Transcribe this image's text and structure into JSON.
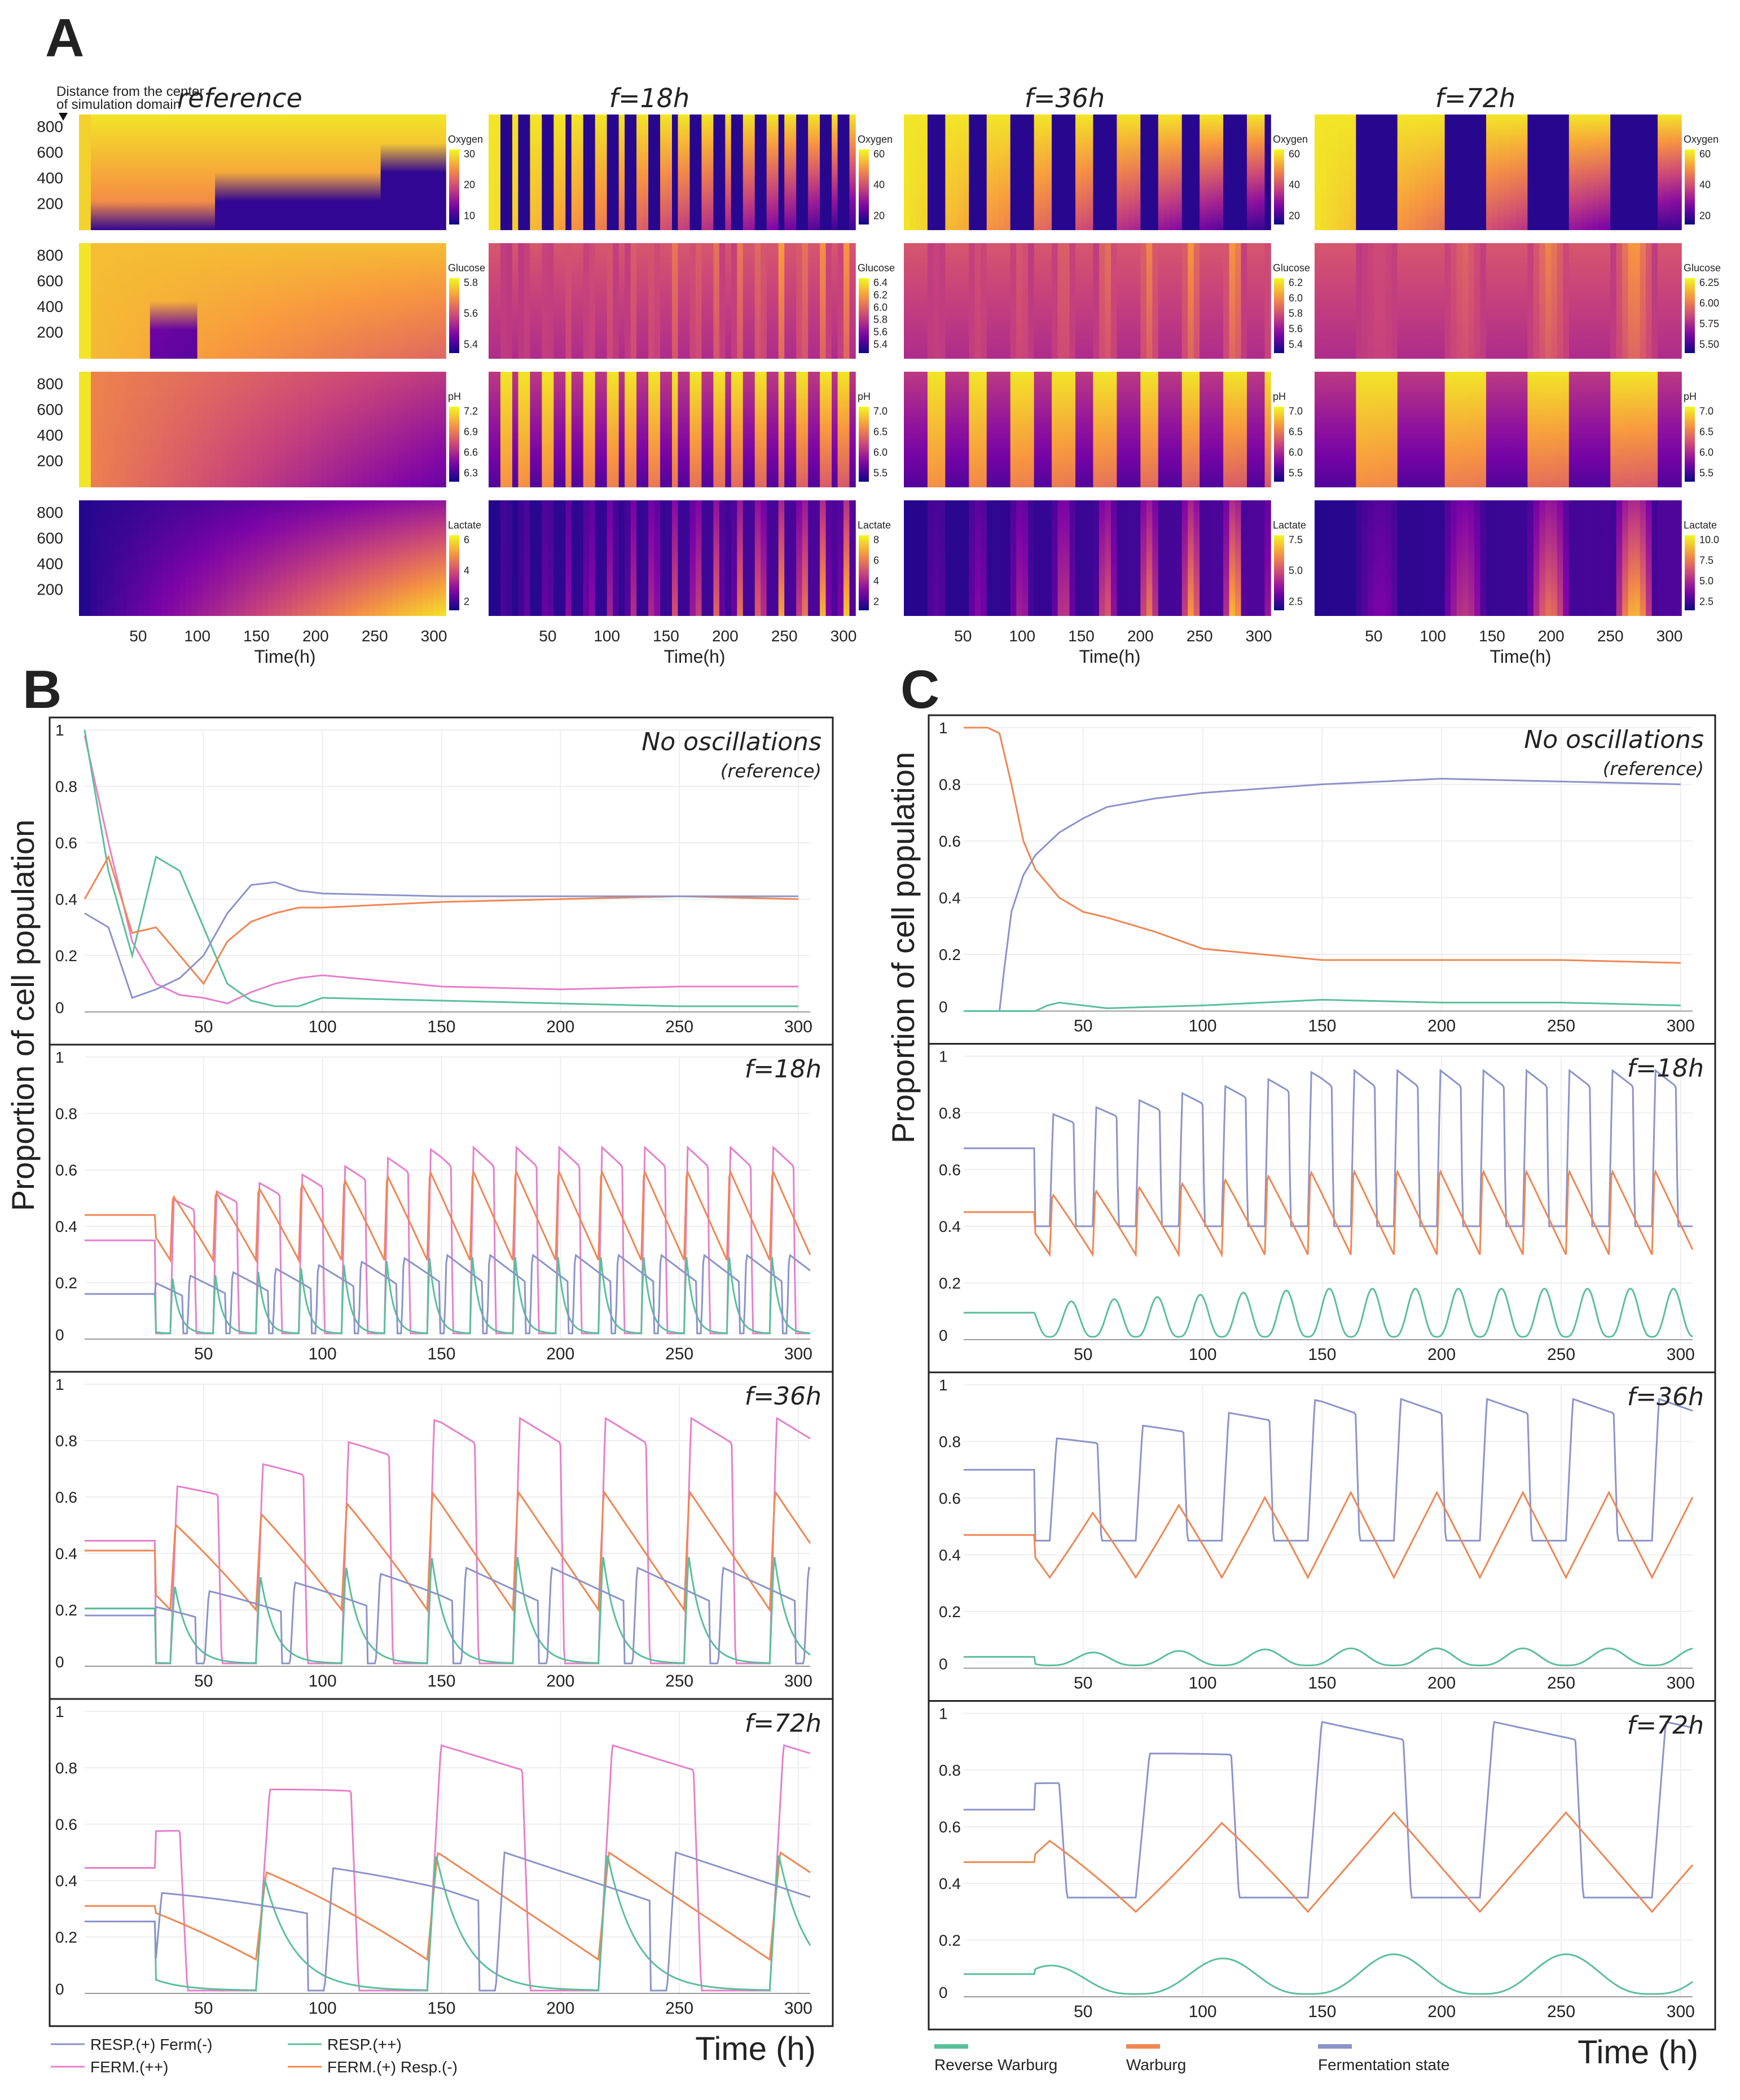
{
  "panel_labels": {
    "a": "A",
    "b": "B",
    "c": "C"
  },
  "panel_a": {
    "distance_caption_line1": "Distance from the center",
    "distance_caption_line2": "of simulation domain",
    "xlabel": "Time(h)",
    "x_ticks": [
      "50",
      "100",
      "150",
      "200",
      "250",
      "300"
    ],
    "y_ticks": [
      "800",
      "600",
      "400",
      "200"
    ],
    "columns": [
      {
        "title": "reference",
        "period_h": 0
      },
      {
        "title": "f=18h",
        "period_h": 18
      },
      {
        "title": "f=36h",
        "period_h": 36
      },
      {
        "title": "f=72h",
        "period_h": 72
      }
    ],
    "colormap": "plasma",
    "variables": [
      "Oxygen",
      "Glucose",
      "pH",
      "Lactate"
    ],
    "colorbars": [
      [
        [
          "30",
          "20",
          "10"
        ],
        [
          "60",
          "40",
          "20"
        ],
        [
          "60",
          "40",
          "20"
        ],
        [
          "60",
          "40",
          "20"
        ]
      ],
      [
        [
          "5.8",
          "5.6",
          "5.4"
        ],
        [
          "6.4",
          "6.2",
          "6.0",
          "5.8",
          "5.6",
          "5.4"
        ],
        [
          "6.2",
          "6.0",
          "5.8",
          "5.6",
          "5.4"
        ],
        [
          "6.25",
          "6.00",
          "5.75",
          "5.50"
        ]
      ],
      [
        [
          "7.2",
          "6.9",
          "6.6",
          "6.3"
        ],
        [
          "7.0",
          "6.5",
          "6.0",
          "5.5"
        ],
        [
          "7.0",
          "6.5",
          "6.0",
          "5.5"
        ],
        [
          "7.0",
          "6.5",
          "6.0",
          "5.5"
        ]
      ],
      [
        [
          "6",
          "4",
          "2"
        ],
        [
          "8",
          "6",
          "4",
          "2"
        ],
        [
          "7.5",
          "5.0",
          "2.5"
        ],
        [
          "10.0",
          "7.5",
          "5.0",
          "2.5"
        ]
      ]
    ]
  },
  "panel_b": {
    "ylabel": "Proportion of cell population",
    "xlabel": "Time (h)",
    "x_ticks": [
      "50",
      "100",
      "150",
      "200",
      "250",
      "300"
    ],
    "y_ticks": [
      "0",
      "0.2",
      "0.4",
      "0.6",
      "0.8",
      "1"
    ],
    "subplot_titles": [
      {
        "line1": "No oscillations",
        "line2": "(reference)"
      },
      {
        "line1": "f=18h",
        "line2": ""
      },
      {
        "line1": "f=36h",
        "line2": ""
      },
      {
        "line1": "f=72h",
        "line2": ""
      }
    ],
    "legend": [
      {
        "name": "RESP.(+) Ferm(-)",
        "color": "#8b93c9"
      },
      {
        "name": "RESP.(++)",
        "color": "#5bbf9a"
      },
      {
        "name": "FERM.(++)",
        "color": "#e67fcb"
      },
      {
        "name": "FERM.(+) Resp.(-)",
        "color": "#ef8653"
      }
    ]
  },
  "panel_c": {
    "ylabel": "Proportion of cell population",
    "xlabel": "Time (h)",
    "x_ticks": [
      "50",
      "100",
      "150",
      "200",
      "250",
      "300"
    ],
    "y_ticks": [
      "0",
      "0.2",
      "0.4",
      "0.6",
      "0.8",
      "1"
    ],
    "subplot_titles": [
      {
        "line1": "No oscillations",
        "line2": "(reference)"
      },
      {
        "line1": "f=18h",
        "line2": ""
      },
      {
        "line1": "f=36h",
        "line2": ""
      },
      {
        "line1": "f=72h",
        "line2": ""
      }
    ],
    "legend": [
      {
        "name": "Reverse Warburg",
        "color": "#5bbf9a"
      },
      {
        "name": "Warburg",
        "color": "#ef8653"
      },
      {
        "name": "Fermentation state",
        "color": "#8b93c9"
      }
    ]
  },
  "chart_data": [
    {
      "type": "heatmap",
      "panel": "A",
      "x_range": [
        0,
        310
      ],
      "y_range": [
        0,
        900
      ],
      "xlabel": "Time(h)",
      "rows": [
        "Oxygen",
        "Glucose",
        "pH",
        "Lactate"
      ],
      "columns": [
        "reference",
        "f=18h",
        "f=36h",
        "f=72h"
      ]
    },
    {
      "type": "line",
      "panel": "B",
      "xlim": [
        0,
        305
      ],
      "ylim": [
        0,
        1
      ],
      "xlabel": "Time (h)",
      "ylabel": "Proportion of cell population",
      "subplots": [
        {
          "title": "No oscillations (reference)",
          "series": [
            {
              "name": "FERM.(++)",
              "x": [
                0,
                10,
                20,
                30,
                40,
                50,
                60,
                70,
                80,
                90,
                100,
                150,
                200,
                250,
                300
              ],
              "y": [
                0.98,
                0.6,
                0.25,
                0.1,
                0.06,
                0.05,
                0.03,
                0.07,
                0.1,
                0.12,
                0.13,
                0.09,
                0.08,
                0.09,
                0.09
              ]
            },
            {
              "name": "RESP.(++)",
              "x": [
                0,
                10,
                20,
                30,
                40,
                50,
                60,
                70,
                80,
                90,
                100,
                150,
                200,
                250,
                300
              ],
              "y": [
                1,
                0.5,
                0.2,
                0.55,
                0.5,
                0.3,
                0.1,
                0.04,
                0.02,
                0.02,
                0.05,
                0.04,
                0.03,
                0.02,
                0.02
              ]
            },
            {
              "name": "FERM.(+) Resp.(-)",
              "x": [
                0,
                10,
                20,
                30,
                40,
                50,
                60,
                70,
                80,
                90,
                100,
                150,
                200,
                250,
                300
              ],
              "y": [
                0.4,
                0.55,
                0.28,
                0.3,
                0.2,
                0.1,
                0.25,
                0.32,
                0.35,
                0.37,
                0.37,
                0.39,
                0.4,
                0.41,
                0.4
              ]
            },
            {
              "name": "RESP.(+) Ferm(-)",
              "x": [
                0,
                10,
                20,
                30,
                40,
                50,
                60,
                70,
                80,
                90,
                100,
                150,
                200,
                250,
                300
              ],
              "y": [
                0.35,
                0.3,
                0.05,
                0.08,
                0.12,
                0.2,
                0.35,
                0.45,
                0.46,
                0.43,
                0.42,
                0.41,
                0.41,
                0.41,
                0.41
              ]
            }
          ]
        },
        {
          "title": "f=18h",
          "series": [
            {
              "name": "FERM.(++)",
              "period": 18,
              "y_range": [
                0.02,
                0.68
              ]
            },
            {
              "name": "FERM.(+) Resp.(-)",
              "period": 18,
              "y_range": [
                0.28,
                0.6
              ]
            },
            {
              "name": "RESP.(++)",
              "period": 18,
              "y_range": [
                0.02,
                0.3
              ]
            },
            {
              "name": "RESP.(+) Ferm(-)",
              "period": 18,
              "y_range": [
                0.02,
                0.3
              ]
            }
          ]
        },
        {
          "title": "f=36h",
          "series": [
            {
              "name": "FERM.(++)",
              "period": 36,
              "y_range": [
                0.01,
                0.88
              ]
            },
            {
              "name": "FERM.(+) Resp.(-)",
              "period": 36,
              "y_range": [
                0.2,
                0.62
              ]
            },
            {
              "name": "RESP.(++)",
              "period": 36,
              "y_range": [
                0.01,
                0.4
              ]
            },
            {
              "name": "RESP.(+) Ferm(-)",
              "period": 36,
              "y_range": [
                0.01,
                0.35
              ]
            }
          ]
        },
        {
          "title": "f=72h",
          "series": [
            {
              "name": "FERM.(++)",
              "period": 72,
              "y_range": [
                0.01,
                0.88
              ]
            },
            {
              "name": "FERM.(+) Resp.(-)",
              "period": 72,
              "y_range": [
                0.12,
                0.5
              ]
            },
            {
              "name": "RESP.(++)",
              "period": 72,
              "y_range": [
                0.01,
                0.5
              ]
            },
            {
              "name": "RESP.(+) Ferm(-)",
              "period": 72,
              "y_range": [
                0.01,
                0.5
              ]
            }
          ]
        }
      ]
    },
    {
      "type": "line",
      "panel": "C",
      "xlim": [
        0,
        305
      ],
      "ylim": [
        0,
        1
      ],
      "xlabel": "Time (h)",
      "ylabel": "Proportion of cell population",
      "subplots": [
        {
          "title": "No oscillations (reference)",
          "series": [
            {
              "name": "Warburg",
              "x": [
                0,
                10,
                15,
                20,
                25,
                30,
                40,
                50,
                60,
                80,
                100,
                150,
                200,
                250,
                300
              ],
              "y": [
                1,
                1,
                0.98,
                0.8,
                0.6,
                0.5,
                0.4,
                0.35,
                0.33,
                0.28,
                0.22,
                0.18,
                0.18,
                0.18,
                0.17
              ]
            },
            {
              "name": "Fermentation state",
              "x": [
                0,
                15,
                17,
                20,
                25,
                30,
                40,
                50,
                60,
                80,
                100,
                150,
                200,
                250,
                300
              ],
              "y": [
                0,
                0,
                0.15,
                0.35,
                0.48,
                0.55,
                0.63,
                0.68,
                0.72,
                0.75,
                0.77,
                0.8,
                0.82,
                0.81,
                0.8
              ]
            },
            {
              "name": "Reverse Warburg",
              "x": [
                0,
                30,
                35,
                40,
                50,
                60,
                100,
                150,
                200,
                250,
                300
              ],
              "y": [
                0,
                0,
                0.02,
                0.03,
                0.02,
                0.01,
                0.02,
                0.04,
                0.03,
                0.03,
                0.02
              ]
            }
          ]
        },
        {
          "title": "f=18h",
          "series": [
            {
              "name": "Fermentation state",
              "period": 18,
              "y_range": [
                0.4,
                0.95
              ]
            },
            {
              "name": "Warburg",
              "period": 18,
              "y_range": [
                0.3,
                0.6
              ]
            },
            {
              "name": "Reverse Warburg",
              "period": 18,
              "y_range": [
                0.01,
                0.18
              ]
            }
          ]
        },
        {
          "title": "f=36h",
          "series": [
            {
              "name": "Fermentation state",
              "period": 36,
              "y_range": [
                0.45,
                0.95
              ]
            },
            {
              "name": "Warburg",
              "period": 36,
              "y_range": [
                0.32,
                0.62
              ]
            },
            {
              "name": "Reverse Warburg",
              "period": 36,
              "y_range": [
                0.01,
                0.07
              ]
            }
          ]
        },
        {
          "title": "f=72h",
          "series": [
            {
              "name": "Fermentation state",
              "period": 72,
              "y_range": [
                0.35,
                0.97
              ]
            },
            {
              "name": "Warburg",
              "period": 72,
              "y_range": [
                0.3,
                0.65
              ]
            },
            {
              "name": "Reverse Warburg",
              "period": 72,
              "y_range": [
                0.01,
                0.15
              ]
            }
          ]
        }
      ]
    }
  ]
}
